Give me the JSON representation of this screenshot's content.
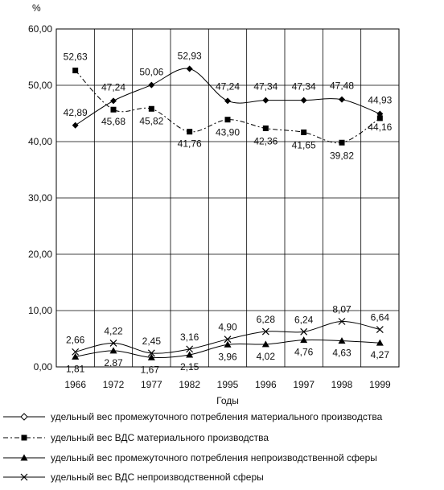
{
  "chart_data": {
    "type": "line",
    "unit_label": "%",
    "xlabel": "Годы",
    "categories": [
      "1966",
      "1972",
      "1977",
      "1982",
      "1995",
      "1996",
      "1997",
      "1998",
      "1999"
    ],
    "ylim": [
      0,
      60
    ],
    "yticks": [
      "0,00",
      "10,00",
      "20,00",
      "30,00",
      "40,00",
      "50,00",
      "60,00"
    ],
    "grid": true,
    "legend_position": "bottom",
    "series": [
      {
        "name": "удельный вес промежуточного потребления материального производства",
        "marker": "diamond",
        "line_style": "solid",
        "values": [
          42.89,
          47.24,
          50.06,
          52.93,
          47.24,
          47.34,
          47.34,
          47.48,
          44.93
        ],
        "labels": [
          "42,89",
          "47,24",
          "50,06",
          "52,93",
          "47,24",
          "47,34",
          "47,34",
          "47,48",
          "44,93"
        ]
      },
      {
        "name": "удельный вес ВДС материального производства",
        "marker": "square",
        "line_style": "dash-dot",
        "values": [
          52.63,
          45.68,
          45.82,
          41.76,
          43.9,
          42.36,
          41.65,
          39.82,
          44.16
        ],
        "labels": [
          "52,63",
          "45,68",
          "45,82",
          "41,76",
          "43,90",
          "42,36",
          "41,65",
          "39,82",
          "44,16"
        ]
      },
      {
        "name": "удельный вес промежуточного потребления непроизводственной сферы",
        "marker": "triangle",
        "line_style": "solid",
        "values": [
          1.81,
          2.87,
          1.67,
          2.15,
          3.96,
          4.02,
          4.76,
          4.63,
          4.27
        ],
        "labels": [
          "1,81",
          "2,87",
          "1,67",
          "2,15",
          "3,96",
          "4,02",
          "4,76",
          "4,63",
          "4,27"
        ]
      },
      {
        "name": "удельный вес ВДС непроизводственной сферы",
        "marker": "x",
        "line_style": "solid",
        "values": [
          2.66,
          4.22,
          2.45,
          3.16,
          4.9,
          6.28,
          6.24,
          8.07,
          6.64
        ],
        "labels": [
          "2,66",
          "4,22",
          "2,45",
          "3,16",
          "4,90",
          "6,28",
          "6,24",
          "8,07",
          "6,64"
        ]
      }
    ]
  }
}
